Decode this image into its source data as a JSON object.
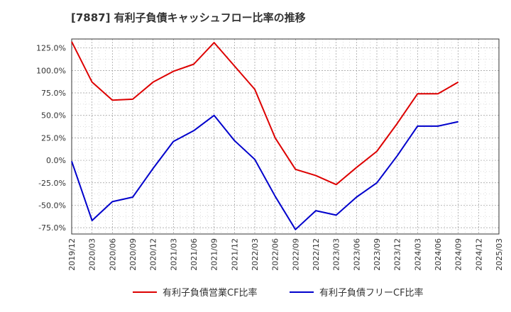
{
  "title": "[7887]  有利子負債キャッシュフロー比率の推移",
  "colors": {
    "series1": "#dd0000",
    "series2": "#0000cc",
    "grid": "#999999",
    "axis": "#333333"
  },
  "chart_data": {
    "type": "line",
    "title": "[7887]  有利子負債キャッシュフロー比率の推移",
    "xlabel": "",
    "ylabel": "",
    "grid": true,
    "legend_position": "bottom",
    "x_ticks": [
      "2019/12",
      "2020/03",
      "2020/06",
      "2020/09",
      "2020/12",
      "2021/03",
      "2021/06",
      "2021/09",
      "2021/12",
      "2022/03",
      "2022/06",
      "2022/09",
      "2022/12",
      "2023/03",
      "2023/06",
      "2023/09",
      "2023/12",
      "2024/03",
      "2024/06",
      "2024/09",
      "2024/12",
      "2025/03"
    ],
    "y_ticks": [
      "125.0%",
      "100.0%",
      "75.0%",
      "50.0%",
      "25.0%",
      "0.0%",
      "-25.0%",
      "-50.0%",
      "-75.0%"
    ],
    "y_tick_values": [
      125,
      100,
      75,
      50,
      25,
      0,
      -25,
      -50,
      -75
    ],
    "ylim": [
      -82,
      135
    ],
    "series": [
      {
        "name": "有利子負債営業CF比率",
        "color": "#dd0000",
        "x": [
          "2019/12",
          "2020/03",
          "2020/06",
          "2020/09",
          "2020/12",
          "2021/03",
          "2021/06",
          "2021/09",
          "2021/12",
          "2022/03",
          "2022/06",
          "2022/09",
          "2022/12",
          "2023/03",
          "2023/06",
          "2023/09",
          "2023/12",
          "2024/03",
          "2024/06",
          "2024/09"
        ],
        "values": [
          132,
          87,
          67,
          68,
          87,
          99,
          107,
          131,
          105,
          79,
          25,
          -10,
          -17,
          -27,
          -8,
          10,
          41,
          74,
          74,
          87
        ]
      },
      {
        "name": "有利子負債フリーCF比率",
        "color": "#0000cc",
        "x": [
          "2019/12",
          "2020/03",
          "2020/06",
          "2020/09",
          "2020/12",
          "2021/03",
          "2021/06",
          "2021/09",
          "2021/12",
          "2022/03",
          "2022/06",
          "2022/09",
          "2022/12",
          "2023/03",
          "2023/06",
          "2023/09",
          "2023/12",
          "2024/03",
          "2024/06",
          "2024/09"
        ],
        "values": [
          -1,
          -67,
          -46,
          -41,
          -9,
          21,
          33,
          50,
          22,
          1,
          -40,
          -77,
          -56,
          -61,
          -41,
          -25,
          5,
          38,
          38,
          43
        ]
      }
    ]
  }
}
